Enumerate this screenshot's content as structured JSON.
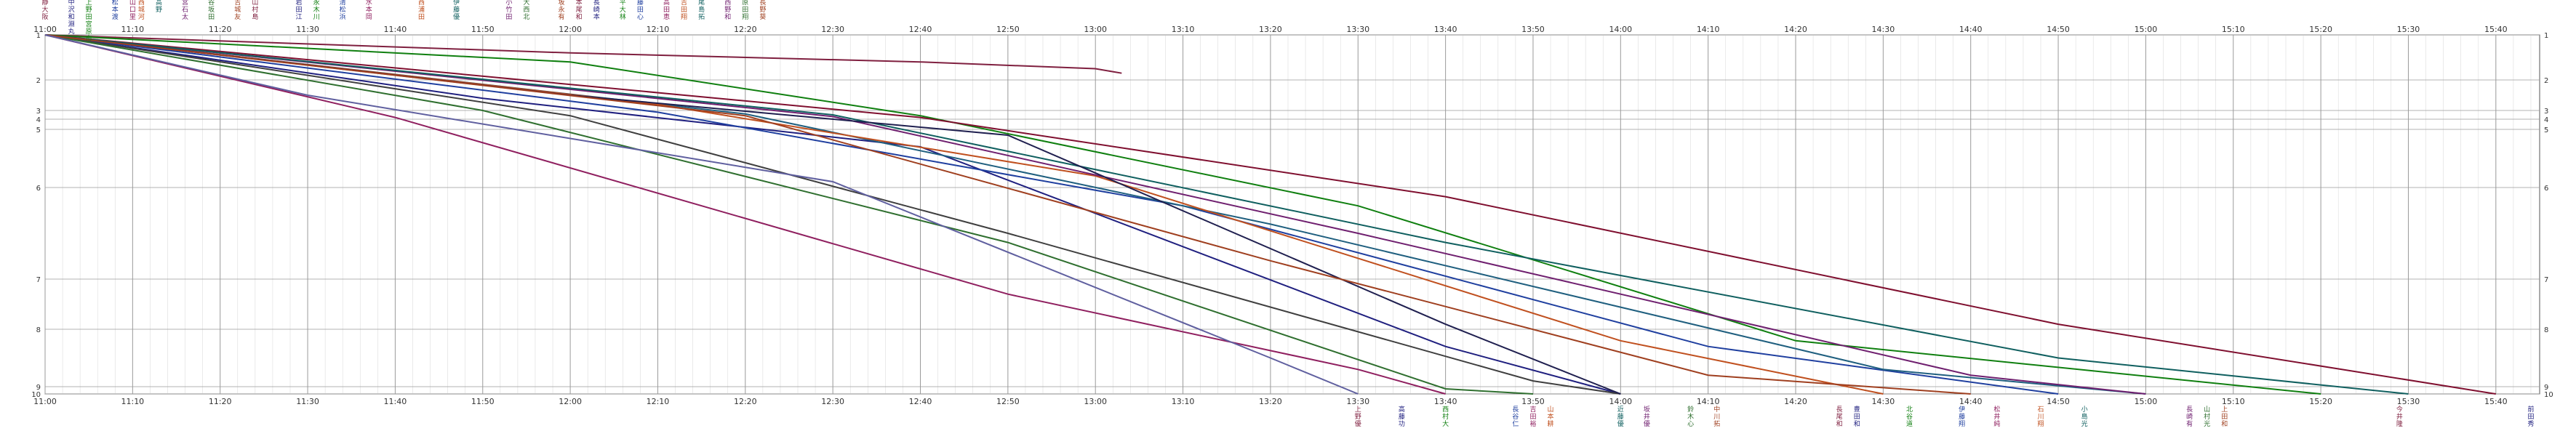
{
  "chart_data": {
    "type": "line",
    "title": "",
    "xlabel": "",
    "ylabel": "",
    "grid": true,
    "x_unit": "time (HH:MM)",
    "x_range": [
      "11:00",
      "15:45"
    ],
    "x_ticks": [
      "11:00",
      "11:10",
      "11:20",
      "11:30",
      "11:40",
      "11:50",
      "12:00",
      "12:10",
      "12:20",
      "12:30",
      "12:40",
      "12:50",
      "13:00",
      "13:10",
      "13:20",
      "13:30",
      "13:40",
      "13:50",
      "14:00",
      "14:10",
      "14:20",
      "14:30",
      "14:40",
      "14:50",
      "15:00",
      "15:10",
      "15:20",
      "15:30",
      "15:40"
    ],
    "y_ticks": [
      "1",
      "2",
      "3",
      "4",
      "5",
      "6",
      "7",
      "8",
      "9",
      "10"
    ],
    "y_range": [
      1,
      10
    ],
    "series": [
      {
        "color": "#7f1f3f",
        "points": [
          [
            "11:00",
            1
          ],
          [
            "12:00",
            1.4
          ],
          [
            "12:40",
            1.6
          ],
          [
            "13:00",
            1.75
          ],
          [
            "13:03",
            1.85
          ]
        ]
      },
      {
        "color": "#1f1f7f",
        "points": [
          [
            "11:00",
            1
          ],
          [
            "11:50",
            2.6
          ],
          [
            "12:40",
            5.3
          ],
          [
            "13:40",
            8.3
          ],
          [
            "14:00",
            10
          ]
        ]
      },
      {
        "color": "#0f7f0f",
        "points": [
          [
            "11:00",
            1
          ],
          [
            "12:00",
            1.6
          ],
          [
            "12:40",
            3.6
          ],
          [
            "13:30",
            6.2
          ],
          [
            "14:20",
            8.2
          ],
          [
            "15:20",
            10
          ]
        ]
      },
      {
        "color": "#1f3f9f",
        "points": [
          [
            "11:00",
            1
          ],
          [
            "12:10",
            3.2
          ],
          [
            "13:10",
            6.2
          ],
          [
            "14:10",
            8.3
          ],
          [
            "14:50",
            10
          ]
        ]
      },
      {
        "color": "#8f1f5f",
        "points": [
          [
            "11:00",
            1
          ],
          [
            "11:40",
            3.8
          ],
          [
            "12:50",
            7.3
          ],
          [
            "13:30",
            8.7
          ],
          [
            "13:40",
            10
          ]
        ]
      },
      {
        "color": "#3f3f3f",
        "points": [
          [
            "11:00",
            1
          ],
          [
            "12:00",
            3.6
          ],
          [
            "12:50",
            6.5
          ],
          [
            "13:50",
            8.9
          ],
          [
            "14:00",
            10
          ]
        ]
      },
      {
        "color": "#1f5f7f",
        "points": [
          [
            "11:00",
            1
          ],
          [
            "12:20",
            3.4
          ],
          [
            "13:20",
            6.4
          ],
          [
            "14:30",
            8.7
          ],
          [
            "15:00",
            10
          ]
        ]
      },
      {
        "color": "#c0501f",
        "points": [
          [
            "11:00",
            1
          ],
          [
            "12:10",
            2.8
          ],
          [
            "13:00",
            5.8
          ],
          [
            "14:00",
            8.2
          ],
          [
            "14:30",
            10
          ]
        ]
      },
      {
        "color": "#6f1f6f",
        "points": [
          [
            "11:00",
            1
          ],
          [
            "12:30",
            3.7
          ],
          [
            "13:30",
            6.5
          ],
          [
            "14:40",
            8.8
          ],
          [
            "15:00",
            10
          ]
        ]
      },
      {
        "color": "#7f0f2f",
        "points": [
          [
            "11:00",
            1
          ],
          [
            "12:40",
            3.8
          ],
          [
            "13:40",
            6.1
          ],
          [
            "14:50",
            7.9
          ],
          [
            "15:40",
            10
          ]
        ]
      },
      {
        "color": "#0f5f5f",
        "points": [
          [
            "11:00",
            1
          ],
          [
            "12:30",
            3.5
          ],
          [
            "13:40",
            6.6
          ],
          [
            "14:50",
            8.5
          ],
          [
            "15:30",
            10
          ]
        ]
      },
      {
        "color": "#2f6f2f",
        "points": [
          [
            "11:00",
            1
          ],
          [
            "11:50",
            3.0
          ],
          [
            "12:50",
            6.6
          ],
          [
            "13:40",
            9.3
          ],
          [
            "13:50",
            10
          ]
        ]
      },
      {
        "color": "#1f1f4f",
        "points": [
          [
            "11:00",
            1
          ],
          [
            "12:00",
            2.5
          ],
          [
            "12:50",
            5.1
          ],
          [
            "13:40",
            7.9
          ],
          [
            "14:00",
            10
          ]
        ]
      },
      {
        "color": "#9f3f1f",
        "points": [
          [
            "11:00",
            1
          ],
          [
            "12:20",
            3.6
          ],
          [
            "13:20",
            6.8
          ],
          [
            "14:10",
            8.8
          ],
          [
            "14:40",
            10
          ]
        ]
      },
      {
        "color": "#5f5f9f",
        "points": [
          [
            "11:00",
            1
          ],
          [
            "11:30",
            2.5
          ],
          [
            "12:30",
            5.9
          ],
          [
            "13:20",
            8.5
          ],
          [
            "13:30",
            10
          ]
        ]
      }
    ],
    "x_top_label_groups": [
      {
        "time": "11:00",
        "labels": [
          "静",
          "大",
          "阪"
        ]
      },
      {
        "time": "11:03",
        "labels": [
          "中",
          "沢",
          "和",
          "淵",
          "丸"
        ]
      },
      {
        "time": "11:05",
        "labels": [
          "上",
          "野",
          "田",
          "宮",
          "原",
          "市"
        ]
      },
      {
        "time": "11:08",
        "labels": [
          "松",
          "本",
          "渡"
        ]
      },
      {
        "time": "11:10",
        "labels": [
          "山",
          "口",
          "里"
        ]
      },
      {
        "time": "11:11",
        "labels": [
          "西",
          "城",
          "河"
        ]
      },
      {
        "time": "11:13",
        "labels": [
          "高",
          "野"
        ]
      },
      {
        "time": "11:16",
        "labels": [
          "宮",
          "石",
          "太"
        ]
      },
      {
        "time": "11:19",
        "labels": [
          "谷",
          "坂",
          "田"
        ]
      },
      {
        "time": "11:22",
        "labels": [
          "吉",
          "城",
          "友"
        ]
      },
      {
        "time": "11:24",
        "labels": [
          "山",
          "村",
          "島"
        ]
      },
      {
        "time": "11:29",
        "labels": [
          "岩",
          "田",
          "江"
        ]
      },
      {
        "time": "11:31",
        "labels": [
          "永",
          "木",
          "川"
        ]
      },
      {
        "time": "11:34",
        "labels": [
          "清",
          "松",
          "浜"
        ]
      },
      {
        "time": "11:37",
        "labels": [
          "水",
          "本",
          "岡"
        ]
      },
      {
        "time": "11:43",
        "labels": [
          "西",
          "浦",
          "田"
        ]
      },
      {
        "time": "11:47",
        "labels": [
          "伊",
          "藤",
          "優"
        ]
      },
      {
        "time": "11:53",
        "labels": [
          "小",
          "竹",
          "田"
        ]
      },
      {
        "time": "11:55",
        "labels": [
          "大",
          "西",
          "北"
        ]
      },
      {
        "time": "11:59",
        "labels": [
          "坂",
          "永",
          "有"
        ]
      },
      {
        "time": "12:01",
        "labels": [
          "本",
          "尾",
          "和"
        ]
      },
      {
        "time": "12:03",
        "labels": [
          "長",
          "崎",
          "本"
        ]
      },
      {
        "time": "12:06",
        "labels": [
          "平",
          "大",
          "林"
        ]
      },
      {
        "time": "12:08",
        "labels": [
          "藤",
          "田",
          "心"
        ]
      },
      {
        "time": "12:11",
        "labels": [
          "高",
          "田",
          "恵"
        ]
      },
      {
        "time": "12:13",
        "labels": [
          "吉",
          "田",
          "翔"
        ]
      },
      {
        "time": "12:15",
        "labels": [
          "尾",
          "島",
          "拓"
        ]
      },
      {
        "time": "12:18",
        "labels": [
          "西",
          "野",
          "和"
        ]
      },
      {
        "time": "12:20",
        "labels": [
          "原",
          "田",
          "翔"
        ]
      },
      {
        "time": "12:22",
        "labels": [
          "長",
          "野",
          "葵"
        ]
      }
    ],
    "x_bottom_label_groups": [
      {
        "time": "13:30",
        "labels": [
          "上",
          "野",
          "優"
        ]
      },
      {
        "time": "13:35",
        "labels": [
          "高",
          "藤",
          "功"
        ]
      },
      {
        "time": "13:40",
        "labels": [
          "西",
          "村",
          "大"
        ]
      },
      {
        "time": "13:48",
        "labels": [
          "長",
          "谷",
          "仁"
        ]
      },
      {
        "time": "13:50",
        "labels": [
          "吉",
          "田",
          "裕"
        ]
      },
      {
        "time": "13:52",
        "labels": [
          "山",
          "本",
          "耕"
        ]
      },
      {
        "time": "14:00",
        "labels": [
          "近",
          "藤",
          "優"
        ]
      },
      {
        "time": "14:03",
        "labels": [
          "坂",
          "井",
          "優"
        ]
      },
      {
        "time": "14:08",
        "labels": [
          "鈴",
          "木",
          "心"
        ]
      },
      {
        "time": "14:11",
        "labels": [
          "中",
          "川",
          "拓"
        ]
      },
      {
        "time": "14:25",
        "labels": [
          "長",
          "尾",
          "和"
        ]
      },
      {
        "time": "14:27",
        "labels": [
          "豊",
          "田",
          "和"
        ]
      },
      {
        "time": "14:33",
        "labels": [
          "北",
          "谷",
          "道"
        ]
      },
      {
        "time": "14:39",
        "labels": [
          "伊",
          "藤",
          "翔"
        ]
      },
      {
        "time": "14:43",
        "labels": [
          "松",
          "井",
          "純"
        ]
      },
      {
        "time": "14:48",
        "labels": [
          "石",
          "川",
          "翔"
        ]
      },
      {
        "time": "14:53",
        "labels": [
          "小",
          "島",
          "光"
        ]
      },
      {
        "time": "15:05",
        "labels": [
          "長",
          "崎",
          "有"
        ]
      },
      {
        "time": "15:07",
        "labels": [
          "山",
          "村",
          "光"
        ]
      },
      {
        "time": "15:09",
        "labels": [
          "上",
          "田",
          "和"
        ]
      },
      {
        "time": "15:29",
        "labels": [
          "今",
          "井",
          "隆"
        ]
      },
      {
        "time": "15:44",
        "labels": [
          "前",
          "田",
          "秀"
        ]
      }
    ]
  }
}
